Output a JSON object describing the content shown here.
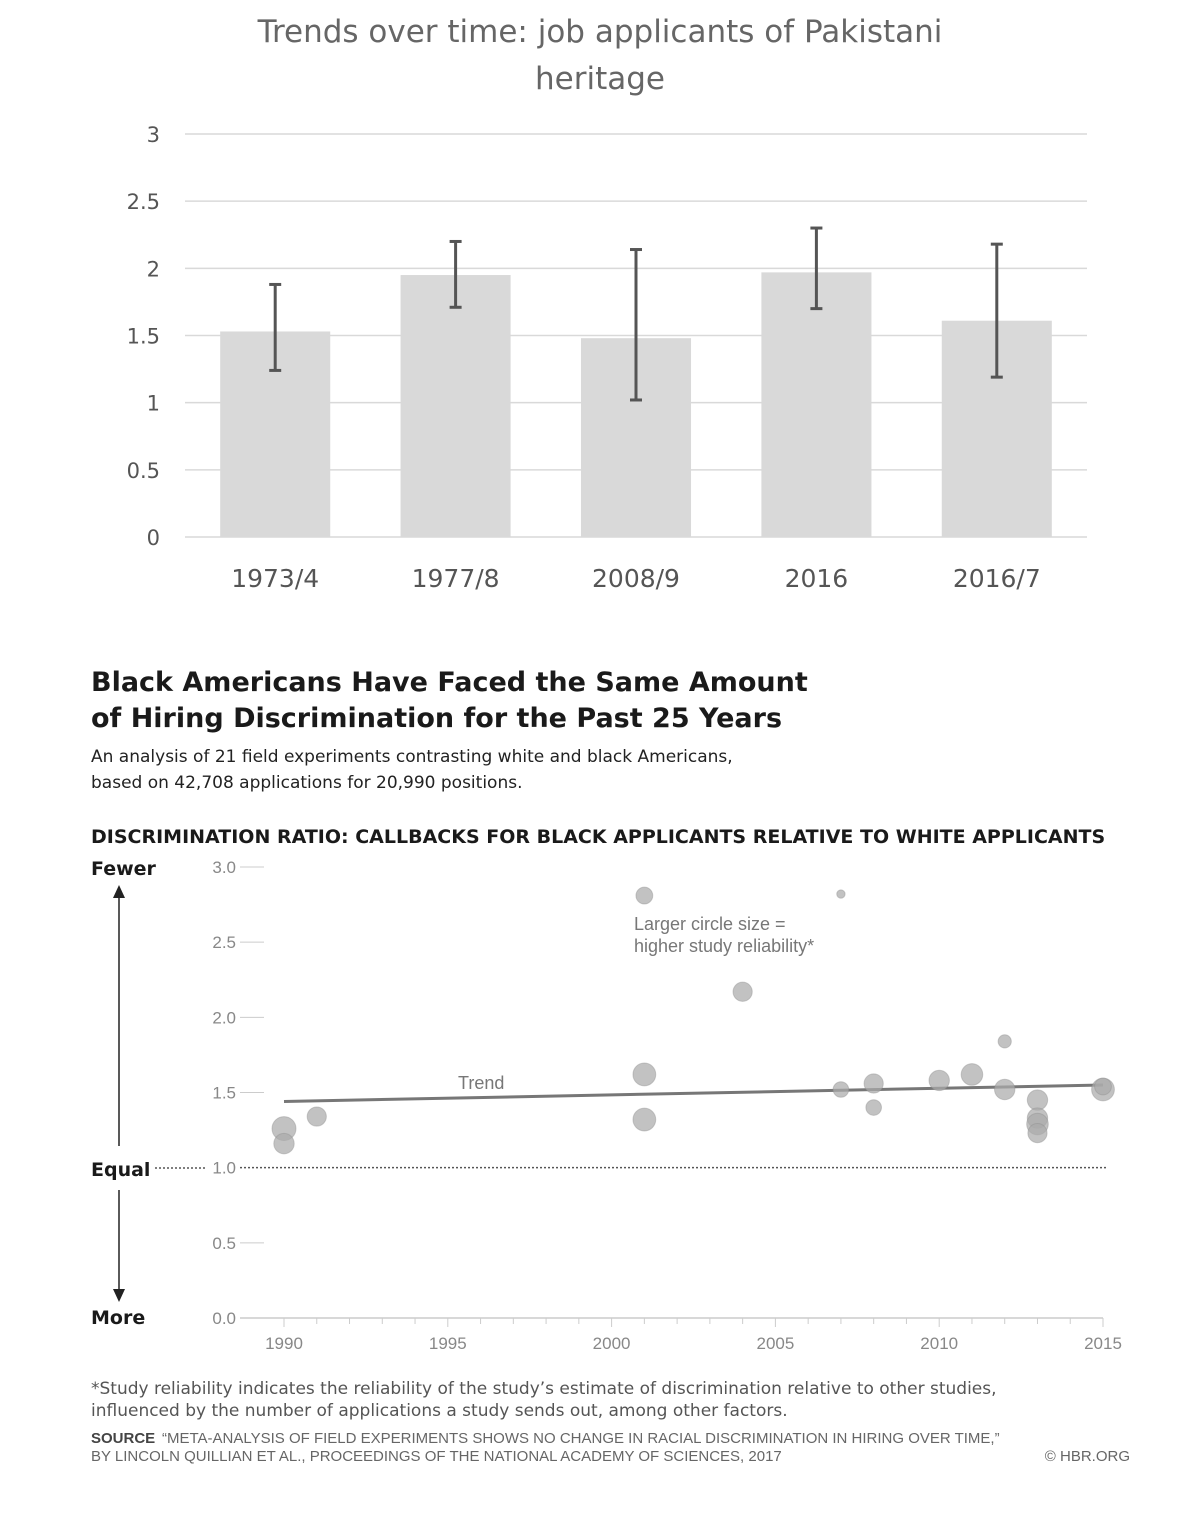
{
  "chart_data": [
    {
      "type": "bar",
      "title_lines": [
        "Trends over time: job applicants of Pakistani",
        "heritage"
      ],
      "categories": [
        "1973/4",
        "1977/8",
        "2008/9",
        "2016",
        "2016/7"
      ],
      "values": [
        1.53,
        1.95,
        1.48,
        1.97,
        1.61
      ],
      "error_low": [
        1.24,
        1.71,
        1.02,
        1.7,
        1.19
      ],
      "error_high": [
        1.88,
        2.2,
        2.14,
        2.3,
        2.18
      ],
      "ylim": [
        0,
        3
      ],
      "yticks": [
        0,
        0.5,
        1,
        1.5,
        2,
        2.5,
        3
      ],
      "ytick_labels": [
        "0",
        "0.5",
        "1",
        "1.5",
        "2",
        "2.5",
        "3"
      ],
      "grid": true,
      "colors": {
        "bar": "#d9d9d9",
        "error": "#555555",
        "grid": "#d9d9d9"
      }
    },
    {
      "type": "scatter",
      "title_lines": [
        "Black Americans Have Faced the Same Amount",
        "of Hiring Discrimination for the Past 25 Years"
      ],
      "subtitle_lines": [
        "An analysis of 21 field experiments contrasting white and black Americans,",
        "based on 42,708 applications for 20,990 positions."
      ],
      "axis_caption": "DISCRIMINATION RATIO: CALLBACKS FOR BLACK APPLICANTS RELATIVE TO WHITE APPLICANTS",
      "side_labels": {
        "top": "Fewer",
        "middle": "Equal",
        "bottom": "More"
      },
      "xlim": [
        1990,
        2015
      ],
      "ylim": [
        0,
        3
      ],
      "xticks": [
        1990,
        1995,
        2000,
        2005,
        2010,
        2015
      ],
      "yticks": [
        0,
        0.5,
        1,
        1.5,
        2,
        2.5,
        3
      ],
      "ytick_labels": [
        "0.0",
        "0.5",
        "1.0",
        "1.5",
        "2.0",
        "2.5",
        "3.0"
      ],
      "size_note_lines": [
        "Larger circle size =",
        "higher study reliability*"
      ],
      "trend": {
        "label": "Trend",
        "x": [
          1990,
          2015
        ],
        "y": [
          1.44,
          1.55
        ]
      },
      "points": [
        {
          "x": 1990,
          "y": 1.26,
          "size": 2.0
        },
        {
          "x": 1990,
          "y": 1.16,
          "size": 1.7
        },
        {
          "x": 1991,
          "y": 1.34,
          "size": 1.6
        },
        {
          "x": 2001,
          "y": 2.81,
          "size": 1.4
        },
        {
          "x": 2001,
          "y": 1.62,
          "size": 1.9
        },
        {
          "x": 2001,
          "y": 1.32,
          "size": 1.9
        },
        {
          "x": 2004,
          "y": 2.17,
          "size": 1.6
        },
        {
          "x": 2007,
          "y": 2.82,
          "size": 0.7
        },
        {
          "x": 2007,
          "y": 1.52,
          "size": 1.3
        },
        {
          "x": 2008,
          "y": 1.56,
          "size": 1.6
        },
        {
          "x": 2008,
          "y": 1.4,
          "size": 1.3
        },
        {
          "x": 2010,
          "y": 1.58,
          "size": 1.7
        },
        {
          "x": 2011,
          "y": 1.62,
          "size": 1.8
        },
        {
          "x": 2012,
          "y": 1.52,
          "size": 1.7
        },
        {
          "x": 2012,
          "y": 1.84,
          "size": 1.1
        },
        {
          "x": 2013,
          "y": 1.45,
          "size": 1.7
        },
        {
          "x": 2013,
          "y": 1.33,
          "size": 1.7
        },
        {
          "x": 2013,
          "y": 1.29,
          "size": 1.8
        },
        {
          "x": 2013,
          "y": 1.23,
          "size": 1.6
        },
        {
          "x": 2015,
          "y": 1.52,
          "size": 1.9
        },
        {
          "x": 2015,
          "y": 1.54,
          "size": 1.4
        }
      ],
      "footnote_lines": [
        "*Study reliability indicates the reliability of the study’s estimate of discrimination relative to other studies,",
        "influenced by the number of applications a study sends out, among other factors."
      ],
      "source_label": "SOURCE",
      "source_lines": [
        "“META-ANALYSIS OF FIELD EXPERIMENTS SHOWS NO CHANGE IN RACIAL DISCRIMINATION IN HIRING OVER TIME,”",
        "BY LINCOLN QUILLIAN ET AL., PROCEEDINGS OF THE NATIONAL ACADEMY OF SCIENCES, 2017"
      ],
      "credit": "© HBR.ORG",
      "colors": {
        "point": "#aaaaaa",
        "point_stroke": "#8c8c8c",
        "trend": "#777777",
        "axis": "#cccccc",
        "equal_line": "#555555"
      }
    }
  ]
}
